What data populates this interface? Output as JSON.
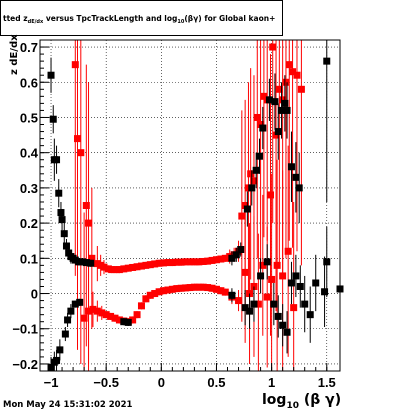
{
  "title": {
    "pre": "tted  z",
    "sub1": "dE/dx",
    "mid": " versus TpcTrackLength and log",
    "sub2": "10",
    "post": "(βγ) for Global kaon+"
  },
  "footer": "Mon May 24 15:31:02 2021",
  "axis": {
    "xlabel_main": "log",
    "xlabel_sub": "10",
    "xlabel_tail": "(β γ)",
    "ylabel": "z dE/dx"
  },
  "colors": {
    "series1": "#ff0000",
    "series2": "#000000",
    "grid": "#000000"
  },
  "chart_data": {
    "type": "scatter",
    "title": "",
    "xlabel": "log10(β γ)",
    "ylabel": "z dE/dx",
    "xlim": [
      -1.1,
      1.62
    ],
    "ylim": [
      -0.22,
      0.72
    ],
    "xticks": [
      -1,
      -0.5,
      0,
      0.5,
      1,
      1.5
    ],
    "xtick_labels": [
      "−1",
      "−0.5",
      "0",
      "0.5",
      "1",
      "1.5"
    ],
    "yticks": [
      -0.2,
      -0.1,
      0,
      0.1,
      0.2,
      0.3,
      0.4,
      0.5,
      0.6,
      0.7
    ],
    "ytick_labels": [
      "−0.2",
      "−0.1",
      "0",
      "0.1",
      "0.2",
      "0.3",
      "0.4",
      "0.5",
      "0.6",
      "0.7"
    ],
    "grid": true,
    "series": [
      {
        "color": "#ff0000",
        "points": [
          {
            "x": -0.78,
            "y": 0.65,
            "err": 0.6
          },
          {
            "x": -0.76,
            "y": 0.44,
            "err": 0.6
          },
          {
            "x": -0.73,
            "y": 0.4,
            "err": 0.6
          },
          {
            "x": -0.68,
            "y": 0.25,
            "err": 0.4
          },
          {
            "x": -0.66,
            "y": 0.2,
            "err": 0.4
          },
          {
            "x": -0.63,
            "y": 0.1,
            "err": 0.2
          },
          {
            "x": -0.58,
            "y": 0.085,
            "err": 0.05
          },
          {
            "x": -0.55,
            "y": 0.08,
            "err": 0.03
          },
          {
            "x": -0.52,
            "y": 0.075,
            "err": 0.02
          },
          {
            "x": -0.48,
            "y": 0.07,
            "err": 0.01
          },
          {
            "x": -0.45,
            "y": 0.068,
            "err": 0.01
          },
          {
            "x": -0.41,
            "y": 0.068,
            "err": 0.01
          },
          {
            "x": -0.38,
            "y": 0.068,
            "err": 0.01
          },
          {
            "x": -0.34,
            "y": 0.07,
            "err": 0.01
          },
          {
            "x": -0.3,
            "y": 0.072,
            "err": 0.01
          },
          {
            "x": -0.26,
            "y": 0.074,
            "err": 0.01
          },
          {
            "x": -0.22,
            "y": 0.076,
            "err": 0.01
          },
          {
            "x": -0.18,
            "y": 0.078,
            "err": 0.01
          },
          {
            "x": -0.14,
            "y": 0.08,
            "err": 0.01
          },
          {
            "x": -0.1,
            "y": 0.082,
            "err": 0.01
          },
          {
            "x": -0.06,
            "y": 0.084,
            "err": 0.01
          },
          {
            "x": -0.02,
            "y": 0.086,
            "err": 0.01
          },
          {
            "x": 0.02,
            "y": 0.087,
            "err": 0.01
          },
          {
            "x": 0.06,
            "y": 0.088,
            "err": 0.01
          },
          {
            "x": 0.1,
            "y": 0.088,
            "err": 0.01
          },
          {
            "x": 0.14,
            "y": 0.089,
            "err": 0.01
          },
          {
            "x": 0.18,
            "y": 0.089,
            "err": 0.01
          },
          {
            "x": 0.22,
            "y": 0.09,
            "err": 0.01
          },
          {
            "x": 0.26,
            "y": 0.09,
            "err": 0.01
          },
          {
            "x": 0.3,
            "y": 0.09,
            "err": 0.01
          },
          {
            "x": 0.34,
            "y": 0.09,
            "err": 0.01
          },
          {
            "x": 0.38,
            "y": 0.091,
            "err": 0.01
          },
          {
            "x": 0.42,
            "y": 0.092,
            "err": 0.01
          },
          {
            "x": 0.46,
            "y": 0.094,
            "err": 0.01
          },
          {
            "x": 0.5,
            "y": 0.096,
            "err": 0.01
          },
          {
            "x": 0.54,
            "y": 0.098,
            "err": 0.01
          },
          {
            "x": 0.58,
            "y": 0.1,
            "err": 0.01
          },
          {
            "x": 0.62,
            "y": 0.105,
            "err": 0.02
          },
          {
            "x": 0.66,
            "y": 0.11,
            "err": 0.02
          },
          {
            "x": 0.7,
            "y": 0.12,
            "err": 0.03
          },
          {
            "x": 0.73,
            "y": 0.22,
            "err": 0.3
          },
          {
            "x": 0.76,
            "y": 0.25,
            "err": 0.3
          },
          {
            "x": 0.79,
            "y": 0.3,
            "err": 0.3
          },
          {
            "x": 0.81,
            "y": 0.34,
            "err": 0.3
          },
          {
            "x": 0.84,
            "y": 0.32,
            "err": 0.3
          },
          {
            "x": 0.87,
            "y": 0.5,
            "err": 0.4
          },
          {
            "x": 0.9,
            "y": 0.48,
            "err": 0.4
          },
          {
            "x": 0.93,
            "y": 0.56,
            "err": 0.4
          },
          {
            "x": 0.96,
            "y": 0.55,
            "err": 0.4
          },
          {
            "x": 0.99,
            "y": 0.28,
            "err": 0.4
          },
          {
            "x": 1.01,
            "y": 0.7,
            "err": 0.5
          },
          {
            "x": 1.04,
            "y": 0.45,
            "err": 0.5
          },
          {
            "x": 1.07,
            "y": 0.58,
            "err": 0.5
          },
          {
            "x": 1.1,
            "y": 0.55,
            "err": 0.5
          },
          {
            "x": 1.13,
            "y": 0.6,
            "err": 0.5
          },
          {
            "x": 1.16,
            "y": 0.65,
            "err": 0.5
          },
          {
            "x": 1.19,
            "y": 0.63,
            "err": 0.5
          },
          {
            "x": 1.23,
            "y": 0.62,
            "err": 0.5
          },
          {
            "x": 1.27,
            "y": 0.58,
            "err": 0.5
          },
          {
            "x": -0.7,
            "y": -0.07,
            "err": 0.3
          },
          {
            "x": -0.66,
            "y": -0.05,
            "err": 0.2
          },
          {
            "x": -0.62,
            "y": -0.045,
            "err": 0.05
          },
          {
            "x": -0.58,
            "y": -0.05,
            "err": 0.03
          },
          {
            "x": -0.54,
            "y": -0.055,
            "err": 0.02
          },
          {
            "x": -0.5,
            "y": -0.06,
            "err": 0.01
          },
          {
            "x": -0.46,
            "y": -0.065,
            "err": 0.01
          },
          {
            "x": -0.42,
            "y": -0.07,
            "err": 0.01
          },
          {
            "x": -0.38,
            "y": -0.075,
            "err": 0.01
          },
          {
            "x": -0.34,
            "y": -0.078,
            "err": 0.01
          },
          {
            "x": -0.3,
            "y": -0.08,
            "err": 0.01
          },
          {
            "x": -0.26,
            "y": -0.075,
            "err": 0.01
          },
          {
            "x": -0.22,
            "y": -0.06,
            "err": 0.01
          },
          {
            "x": -0.18,
            "y": -0.035,
            "err": 0.01
          },
          {
            "x": -0.14,
            "y": -0.015,
            "err": 0.01
          },
          {
            "x": -0.1,
            "y": -0.005,
            "err": 0.01
          },
          {
            "x": -0.06,
            "y": 0.0,
            "err": 0.01
          },
          {
            "x": -0.02,
            "y": 0.005,
            "err": 0.01
          },
          {
            "x": 0.02,
            "y": 0.008,
            "err": 0.01
          },
          {
            "x": 0.06,
            "y": 0.01,
            "err": 0.01
          },
          {
            "x": 0.1,
            "y": 0.012,
            "err": 0.01
          },
          {
            "x": 0.14,
            "y": 0.014,
            "err": 0.01
          },
          {
            "x": 0.18,
            "y": 0.015,
            "err": 0.01
          },
          {
            "x": 0.22,
            "y": 0.016,
            "err": 0.01
          },
          {
            "x": 0.26,
            "y": 0.017,
            "err": 0.01
          },
          {
            "x": 0.3,
            "y": 0.018,
            "err": 0.01
          },
          {
            "x": 0.34,
            "y": 0.018,
            "err": 0.01
          },
          {
            "x": 0.38,
            "y": 0.018,
            "err": 0.01
          },
          {
            "x": 0.42,
            "y": 0.017,
            "err": 0.01
          },
          {
            "x": 0.46,
            "y": 0.015,
            "err": 0.01
          },
          {
            "x": 0.5,
            "y": 0.012,
            "err": 0.01
          },
          {
            "x": 0.54,
            "y": 0.008,
            "err": 0.01
          },
          {
            "x": 0.58,
            "y": 0.004,
            "err": 0.01
          },
          {
            "x": 0.64,
            "y": -0.01,
            "err": 0.02
          },
          {
            "x": 0.7,
            "y": -0.02,
            "err": 0.03
          },
          {
            "x": 0.76,
            "y": 0.06,
            "err": 0.2
          },
          {
            "x": 0.8,
            "y": 0.0,
            "err": 0.2
          },
          {
            "x": 0.84,
            "y": 0.02,
            "err": 0.2
          },
          {
            "x": 0.88,
            "y": -0.03,
            "err": 0.2
          },
          {
            "x": 0.92,
            "y": 0.08,
            "err": 0.2
          },
          {
            "x": 0.96,
            "y": -0.01,
            "err": 0.2
          },
          {
            "x": 1.0,
            "y": 0.04,
            "err": 0.3
          },
          {
            "x": 1.05,
            "y": 0.08,
            "err": 0.3
          },
          {
            "x": 1.1,
            "y": 0.05,
            "err": 0.3
          },
          {
            "x": 1.15,
            "y": 0.12,
            "err": 0.3
          },
          {
            "x": 1.2,
            "y": -0.04,
            "err": 0.3
          }
        ]
      },
      {
        "color": "#000000",
        "points": [
          {
            "x": -1.0,
            "y": 0.62,
            "err": 0.05
          },
          {
            "x": -0.98,
            "y": 0.495,
            "err": 0.04
          },
          {
            "x": -0.97,
            "y": 0.38,
            "err": 0.06
          },
          {
            "x": -0.95,
            "y": 0.38,
            "err": 0.04
          },
          {
            "x": -0.93,
            "y": 0.285,
            "err": 0.04
          },
          {
            "x": -0.91,
            "y": 0.23,
            "err": 0.03
          },
          {
            "x": -0.9,
            "y": 0.21,
            "err": 0.03
          },
          {
            "x": -0.88,
            "y": 0.17,
            "err": 0.03
          },
          {
            "x": -0.86,
            "y": 0.135,
            "err": 0.02
          },
          {
            "x": -0.84,
            "y": 0.115,
            "err": 0.02
          },
          {
            "x": -0.82,
            "y": 0.105,
            "err": 0.02
          },
          {
            "x": -0.8,
            "y": 0.1,
            "err": 0.01
          },
          {
            "x": -0.78,
            "y": 0.095,
            "err": 0.01
          },
          {
            "x": -0.75,
            "y": 0.09,
            "err": 0.01
          },
          {
            "x": -0.72,
            "y": 0.09,
            "err": 0.01
          },
          {
            "x": -0.68,
            "y": 0.088,
            "err": 0.01
          },
          {
            "x": -0.64,
            "y": 0.086,
            "err": 0.01
          },
          {
            "x": 0.64,
            "y": 0.1,
            "err": 0.02
          },
          {
            "x": 0.68,
            "y": 0.11,
            "err": 0.02
          },
          {
            "x": 0.72,
            "y": 0.125,
            "err": 0.02
          },
          {
            "x": 0.78,
            "y": 0.24,
            "err": 0.05
          },
          {
            "x": 0.82,
            "y": 0.3,
            "err": 0.05
          },
          {
            "x": 0.86,
            "y": 0.35,
            "err": 0.05
          },
          {
            "x": 0.89,
            "y": 0.39,
            "err": 0.05
          },
          {
            "x": 0.92,
            "y": 0.47,
            "err": 0.06
          },
          {
            "x": 0.98,
            "y": 0.55,
            "err": 0.06
          },
          {
            "x": 1.03,
            "y": 0.545,
            "err": 0.08
          },
          {
            "x": 1.06,
            "y": 0.46,
            "err": 0.08
          },
          {
            "x": 1.09,
            "y": 0.52,
            "err": 0.08
          },
          {
            "x": 1.12,
            "y": 0.54,
            "err": 0.08
          },
          {
            "x": 1.14,
            "y": 0.52,
            "err": 0.08
          },
          {
            "x": 1.18,
            "y": 0.36,
            "err": 0.1
          },
          {
            "x": 1.22,
            "y": 0.33,
            "err": 0.1
          },
          {
            "x": 1.25,
            "y": 0.3,
            "err": 0.1
          },
          {
            "x": 1.5,
            "y": 0.66,
            "err": 0.4
          },
          {
            "x": -1.0,
            "y": -0.21,
            "err": 0.03
          },
          {
            "x": -0.97,
            "y": -0.195,
            "err": 0.03
          },
          {
            "x": -0.95,
            "y": -0.19,
            "err": 0.03
          },
          {
            "x": -0.92,
            "y": -0.16,
            "err": 0.03
          },
          {
            "x": -0.87,
            "y": -0.115,
            "err": 0.02
          },
          {
            "x": -0.85,
            "y": -0.075,
            "err": 0.02
          },
          {
            "x": -0.82,
            "y": -0.05,
            "err": 0.02
          },
          {
            "x": -0.78,
            "y": -0.03,
            "err": 0.01
          },
          {
            "x": -0.74,
            "y": -0.025,
            "err": 0.01
          },
          {
            "x": -0.3,
            "y": -0.082,
            "err": 0.01
          },
          {
            "x": -0.34,
            "y": -0.08,
            "err": 0.01
          },
          {
            "x": 0.64,
            "y": -0.005,
            "err": 0.02
          },
          {
            "x": 0.76,
            "y": -0.04,
            "err": 0.05
          },
          {
            "x": 0.8,
            "y": -0.05,
            "err": 0.05
          },
          {
            "x": 0.84,
            "y": -0.03,
            "err": 0.05
          },
          {
            "x": 0.9,
            "y": 0.05,
            "err": 0.05
          },
          {
            "x": 0.96,
            "y": 0.09,
            "err": 0.05
          },
          {
            "x": 1.02,
            "y": -0.03,
            "err": 0.06
          },
          {
            "x": 1.06,
            "y": -0.065,
            "err": 0.06
          },
          {
            "x": 1.1,
            "y": -0.09,
            "err": 0.06
          },
          {
            "x": 1.14,
            "y": -0.11,
            "err": 0.06
          },
          {
            "x": 1.18,
            "y": 0.03,
            "err": 0.06
          },
          {
            "x": 1.22,
            "y": 0.05,
            "err": 0.06
          },
          {
            "x": 1.26,
            "y": 0.02,
            "err": 0.06
          },
          {
            "x": 1.3,
            "y": -0.03,
            "err": 0.08
          },
          {
            "x": 1.35,
            "y": -0.06,
            "err": 0.08
          },
          {
            "x": 1.4,
            "y": 0.03,
            "err": 0.08
          },
          {
            "x": 1.48,
            "y": 0.005,
            "err": 0.1
          },
          {
            "x": 1.5,
            "y": 0.09,
            "err": 0.1
          },
          {
            "x": 1.62,
            "y": 0.013,
            "err": 0.1
          }
        ]
      }
    ]
  }
}
